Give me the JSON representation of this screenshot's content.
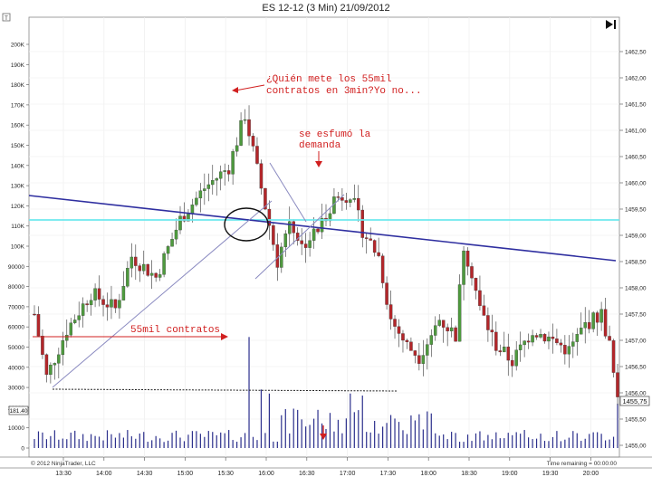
{
  "window": {
    "title": "ES 12-12 (3 Min)  21/09/2012",
    "copyright": "© 2012 NinjaTrader, LLC",
    "time_remaining": "Time remaining = 00:00:00",
    "left_badge": "181.40",
    "corner_glyph": "T",
    "play_icon": "play-to-end-icon"
  },
  "annotations": {
    "quien_line1": "¿Quién mete los 55mil",
    "quien_line2": "contratos en 3min?Yo no...",
    "demanda_line1": "se esfumó la",
    "demanda_line2": "demanda",
    "contratos": "55mil contratos"
  },
  "chart_data": {
    "type": "candlestick",
    "x_ticks": [
      "13:30",
      "14:00",
      "14:30",
      "15:00",
      "15:30",
      "16:00",
      "16:30",
      "17:00",
      "17:30",
      "18:00",
      "18:30",
      "19:00",
      "19:30",
      "20:00"
    ],
    "y_left_ticks": [
      "0",
      "10000",
      "20000",
      "30000",
      "40000",
      "50000",
      "60000",
      "70000",
      "80000",
      "90000",
      "100K",
      "110K",
      "120K",
      "130K",
      "140K",
      "150K",
      "160K",
      "170K",
      "180K",
      "190K",
      "200K"
    ],
    "y_right_ticks": [
      "1455,00",
      "1455,50",
      "1456,00",
      "1456,50",
      "1457,00",
      "1457,50",
      "1458,00",
      "1458,50",
      "1459,00",
      "1459,50",
      "1460,00",
      "1460,50",
      "1461,00",
      "1461,50",
      "1462,00",
      "1462,50"
    ],
    "last_price": "1455,75",
    "colors": {
      "up": "#4e9a3e",
      "down": "#b3262a",
      "volume": "#2b2f8c",
      "trend": "#2f2fa0",
      "level": "#6ee8ee",
      "annot": "#d11f1f"
    },
    "price_data_units": {
      "min": 1455.0,
      "max": 1462.75,
      "start": 1456.5,
      "peak": 1461.5,
      "level": 1459.0
    }
  }
}
